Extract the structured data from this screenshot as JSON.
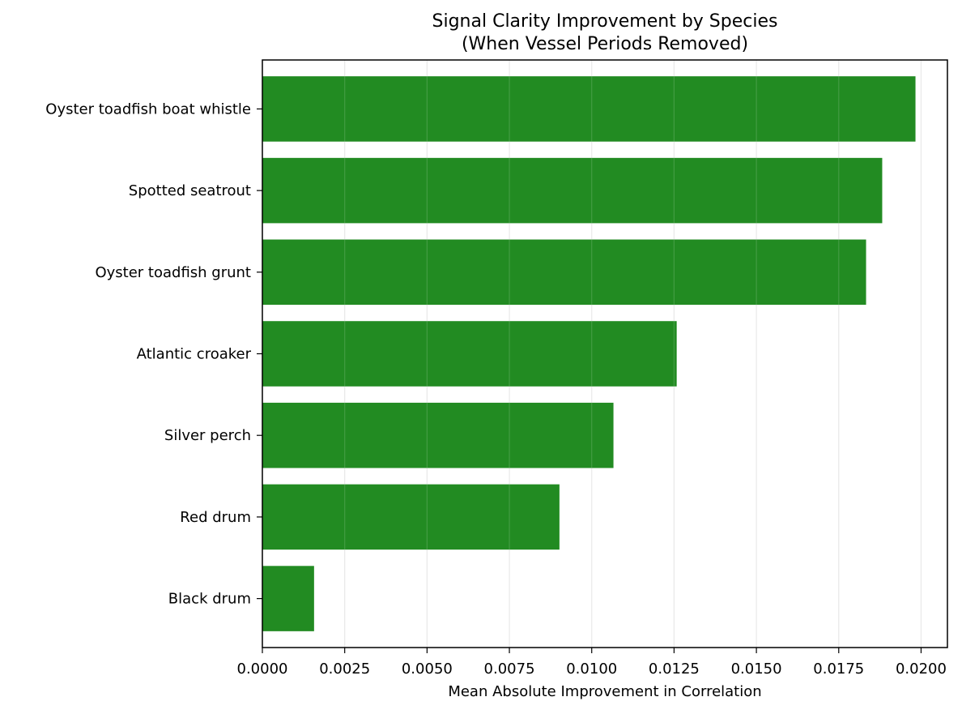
{
  "chart_data": {
    "type": "bar",
    "orientation": "horizontal",
    "title_line1": "Signal Clarity Improvement by Species",
    "title_line2": "(When Vessel Periods Removed)",
    "xlabel": "Mean Absolute Improvement in Correlation",
    "ylabel": "",
    "categories": [
      "Oyster toadfish boat whistle",
      "Spotted seatrout",
      "Oyster toadfish grunt",
      "Atlantic croaker",
      "Silver perch",
      "Red drum",
      "Black drum"
    ],
    "values": [
      0.01983,
      0.01882,
      0.01833,
      0.01258,
      0.01066,
      0.00902,
      0.00157
    ],
    "xlim": [
      0.0,
      0.0208
    ],
    "xticks": [
      "0.0000",
      "0.0025",
      "0.0050",
      "0.0075",
      "0.0100",
      "0.0125",
      "0.0150",
      "0.0175",
      "0.0200"
    ],
    "xtick_values": [
      0.0,
      0.0025,
      0.005,
      0.0075,
      0.01,
      0.0125,
      0.015,
      0.0175,
      0.02
    ],
    "grid": "x-axis vertical lines",
    "bar_color": "#228B22",
    "grid_color": "#e6e6e6"
  }
}
